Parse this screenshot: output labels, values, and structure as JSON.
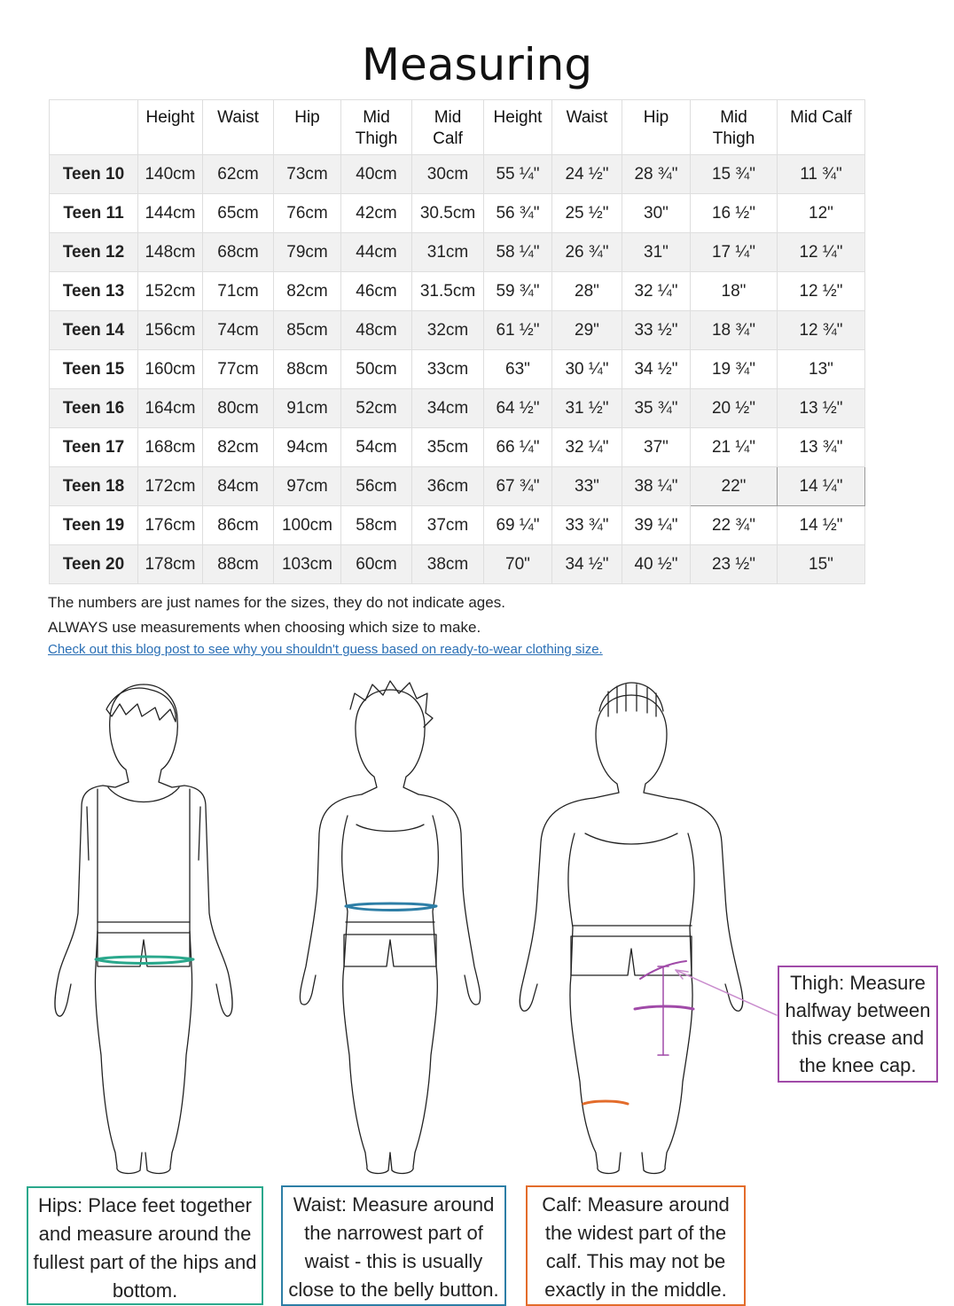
{
  "title": "Measuring",
  "table": {
    "headers": [
      {
        "line1": "",
        "line2": ""
      },
      {
        "line1": "Height",
        "line2": ""
      },
      {
        "line1": "Waist",
        "line2": ""
      },
      {
        "line1": "Hip",
        "line2": ""
      },
      {
        "line1": "Mid",
        "line2": "Thigh"
      },
      {
        "line1": "Mid",
        "line2": "Calf"
      },
      {
        "line1": "Height",
        "line2": ""
      },
      {
        "line1": "Waist",
        "line2": ""
      },
      {
        "line1": "Hip",
        "line2": ""
      },
      {
        "line1": "Mid",
        "line2": "Thigh"
      },
      {
        "line1": "Mid Calf",
        "line2": ""
      }
    ],
    "rows": [
      [
        "Teen 10",
        "140cm",
        "62cm",
        "73cm",
        "40cm",
        "30cm",
        "55 ¼\"",
        "24 ½\"",
        "28 ¾\"",
        "15 ¾\"",
        "11 ¾\""
      ],
      [
        "Teen 11",
        "144cm",
        "65cm",
        "76cm",
        "42cm",
        "30.5cm",
        "56 ¾\"",
        "25 ½\"",
        "30\"",
        "16 ½\"",
        "12\""
      ],
      [
        "Teen 12",
        "148cm",
        "68cm",
        "79cm",
        "44cm",
        "31cm",
        "58 ¼\"",
        "26 ¾\"",
        "31\"",
        "17 ¼\"",
        "12 ¼\""
      ],
      [
        "Teen 13",
        "152cm",
        "71cm",
        "82cm",
        "46cm",
        "31.5cm",
        "59 ¾\"",
        "28\"",
        "32 ¼\"",
        "18\"",
        "12 ½\""
      ],
      [
        "Teen 14",
        "156cm",
        "74cm",
        "85cm",
        "48cm",
        "32cm",
        "61 ½\"",
        "29\"",
        "33 ½\"",
        "18 ¾\"",
        "12 ¾\""
      ],
      [
        "Teen 15",
        "160cm",
        "77cm",
        "88cm",
        "50cm",
        "33cm",
        "63\"",
        "30 ¼\"",
        "34 ½\"",
        "19 ¾\"",
        "13\""
      ],
      [
        "Teen 16",
        "164cm",
        "80cm",
        "91cm",
        "52cm",
        "34cm",
        "64 ½\"",
        "31 ½\"",
        "35 ¾\"",
        "20 ½\"",
        "13 ½\""
      ],
      [
        "Teen 17",
        "168cm",
        "82cm",
        "94cm",
        "54cm",
        "35cm",
        "66 ¼\"",
        "32 ¼\"",
        "37\"",
        "21 ¼\"",
        "13 ¾\""
      ],
      [
        "Teen 18",
        "172cm",
        "84cm",
        "97cm",
        "56cm",
        "36cm",
        "67 ¾\"",
        "33\"",
        "38 ¼\"",
        "22\"",
        "14 ¼\""
      ],
      [
        "Teen 19",
        "176cm",
        "86cm",
        "100cm",
        "58cm",
        "37cm",
        "69 ¼\"",
        "33 ¾\"",
        "39 ¼\"",
        "22 ¾\"",
        "14 ½\""
      ],
      [
        "Teen 20",
        "178cm",
        "88cm",
        "103cm",
        "60cm",
        "38cm",
        "70\"",
        "34 ½\"",
        "40 ½\"",
        "23 ½\"",
        "15\""
      ]
    ]
  },
  "notes": {
    "line1": "The numbers are just names for the sizes, they do not indicate ages.",
    "line2": "ALWAYS use measurements when choosing which size to make.",
    "link": "Check out this blog post to see why you shouldn't guess based on ready-to-wear clothing size."
  },
  "callouts": {
    "hips": "Hips: Place feet together and measure around the fullest part of the hips and bottom.",
    "waist": "Waist: Measure around the narrowest part of waist - this is usually close to the belly button.",
    "calf": "Calf: Measure around the widest part of the calf. This may not be exactly in the middle.",
    "thigh": "Thigh: Measure halfway between this crease and the knee cap."
  },
  "colors": {
    "hips": "#2aa88c",
    "waist": "#2d7ea6",
    "calf": "#e36c2b",
    "thigh": "#a04aa8"
  }
}
